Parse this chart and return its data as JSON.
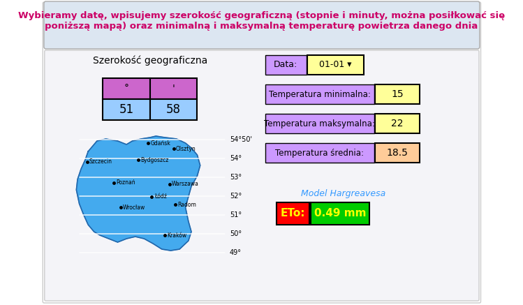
{
  "title_text": "Wybieramy datę, wpisujemy szerokość geograficzną (stopnie i minuty, można posiłkować się\nponiższą mapą) oraz minimalną i maksymalną temperaturę powietrza danego dnia",
  "title_bg": "#dce6f1",
  "title_color": "#cc0066",
  "main_bg": "#f0f0f8",
  "geo_label": "Szerokość geograficzna",
  "col1_label": "°",
  "col2_label": "'",
  "val1": "51",
  "val2": "58",
  "table_header_bg": "#cc66cc",
  "table_val_bg": "#99ccff",
  "data_label": "Data:",
  "data_value": "01-01 ▾",
  "data_label_bg": "#cc99ff",
  "data_value_bg": "#ffff99",
  "temp_min_label": "Temperatura minimalna:",
  "temp_min_value": "15",
  "temp_max_label": "Temperatura maksymalna:",
  "temp_max_value": "22",
  "temp_avg_label": "Temperatura średnia:",
  "temp_avg_value": "18.5",
  "temp_label_bg": "#cc99ff",
  "temp_min_bg": "#ffff99",
  "temp_max_bg": "#ffff99",
  "temp_avg_bg": "#ffcc99",
  "model_label": "Model Hargreavesa",
  "eto_label": "ETo:",
  "eto_label_bg": "#ff0000",
  "eto_value": "0.49 mm",
  "eto_value_bg": "#00cc00",
  "eto_label_color": "#ffff00",
  "eto_value_color": "#ffff00",
  "model_label_color": "#3399ff",
  "map_cities": [
    "Gdańsk",
    "Olsztyn",
    "Szczecin",
    "Bydgoszcz",
    "Poznań",
    "Warszawa",
    "Łódź",
    "Radom",
    "Wrocław",
    "Kraków"
  ],
  "latitudes": [
    "54°50'",
    "54°",
    "53°",
    "52°",
    "51°",
    "50°",
    "49°"
  ],
  "border_color": "#aaaaaa",
  "outer_border": "#cccccc"
}
